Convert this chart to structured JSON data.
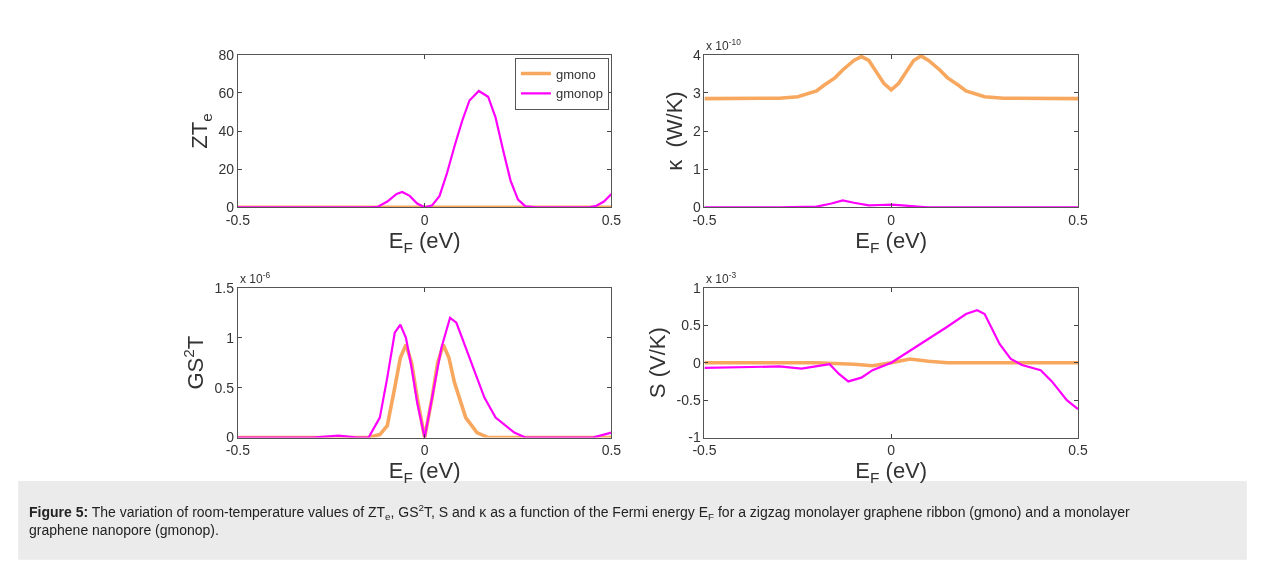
{
  "chart_data": [
    {
      "type": "line",
      "ylabel": "ZT$_{e}$",
      "xlabel": "E$_{F}$ (eV)",
      "xlim": [
        -0.5,
        0.5
      ],
      "xticks": [
        -0.5,
        0,
        0.5
      ],
      "ylim": [
        0,
        80
      ],
      "yticks": [
        0,
        20,
        40,
        60,
        80
      ],
      "legend": "top right",
      "series": [
        {
          "name": "gmono",
          "color": "#f7a85e",
          "x": [
            -0.5,
            -0.25,
            0,
            0.25,
            0.5
          ],
          "values": [
            0,
            0,
            0,
            0,
            0
          ]
        },
        {
          "name": "gmonop",
          "color": "#ff00ff",
          "x": [
            -0.5,
            -0.15,
            -0.125,
            -0.1,
            -0.075,
            -0.06,
            -0.04,
            -0.02,
            0,
            0.02,
            0.04,
            0.06,
            0.08,
            0.1,
            0.12,
            0.145,
            0.17,
            0.19,
            0.21,
            0.23,
            0.25,
            0.27,
            0.3,
            0.44,
            0.46,
            0.48,
            0.5
          ],
          "values": [
            0,
            0,
            0.3,
            3,
            7,
            8,
            6,
            2,
            0,
            1,
            6,
            18,
            32,
            45,
            56,
            61,
            58,
            47,
            30,
            14,
            4,
            0.5,
            0,
            0,
            0.8,
            3,
            7
          ]
        }
      ]
    },
    {
      "type": "line",
      "ylabel": "κ  (W/K)",
      "xlabel": "E$_{F}$ (eV)",
      "xlim": [
        -0.5,
        0.5
      ],
      "xticks": [
        -0.5,
        0,
        0.5
      ],
      "ylim": [
        0,
        4
      ],
      "yticks": [
        0,
        1,
        2,
        3,
        4
      ],
      "annotations": [
        "x 10$^{-10}$"
      ],
      "series": [
        {
          "color": "#f7a85e",
          "x": [
            -0.5,
            -0.3,
            -0.25,
            -0.2,
            -0.18,
            -0.15,
            -0.13,
            -0.1,
            -0.08,
            -0.06,
            -0.04,
            -0.02,
            0,
            0.02,
            0.04,
            0.06,
            0.08,
            0.1,
            0.13,
            0.15,
            0.18,
            0.2,
            0.25,
            0.3,
            0.5
          ],
          "values": [
            2.85,
            2.86,
            2.9,
            3.05,
            3.2,
            3.4,
            3.6,
            3.85,
            3.95,
            3.85,
            3.55,
            3.25,
            3.08,
            3.25,
            3.55,
            3.85,
            3.97,
            3.85,
            3.6,
            3.4,
            3.2,
            3.05,
            2.9,
            2.86,
            2.85
          ]
        },
        {
          "color": "#ff00ff",
          "x": [
            -0.5,
            -0.3,
            -0.2,
            -0.16,
            -0.13,
            -0.1,
            -0.06,
            -0.03,
            0,
            0.03,
            0.07,
            0.1,
            0.5
          ],
          "values": [
            0,
            0,
            0.02,
            0.1,
            0.18,
            0.12,
            0.05,
            0.06,
            0.07,
            0.05,
            0.02,
            0,
            0
          ]
        }
      ]
    },
    {
      "type": "line",
      "ylabel": "GS$^{2}$T",
      "xlabel": "E$_{F}$ (eV)",
      "xlim": [
        -0.5,
        0.5
      ],
      "xticks": [
        -0.5,
        0,
        0.5
      ],
      "ylim": [
        0,
        1.5
      ],
      "yticks": [
        0,
        0.5,
        1,
        1.5
      ],
      "annotations": [
        "x 10$^{-6}$"
      ],
      "series": [
        {
          "color": "#f7a85e",
          "x": [
            -0.5,
            -0.15,
            -0.12,
            -0.1,
            -0.08,
            -0.065,
            -0.05,
            -0.035,
            -0.02,
            0,
            0.02,
            0.035,
            0.05,
            0.065,
            0.08,
            0.11,
            0.14,
            0.17,
            0.5
          ],
          "values": [
            0,
            0,
            0.03,
            0.12,
            0.5,
            0.8,
            0.93,
            0.75,
            0.4,
            0,
            0.4,
            0.75,
            0.93,
            0.8,
            0.55,
            0.2,
            0.05,
            0,
            0
          ]
        },
        {
          "color": "#ff00ff",
          "x": [
            -0.5,
            -0.3,
            -0.23,
            -0.18,
            -0.15,
            -0.12,
            -0.1,
            -0.08,
            -0.065,
            -0.05,
            -0.035,
            -0.02,
            0,
            0.02,
            0.045,
            0.068,
            0.085,
            0.1,
            0.13,
            0.16,
            0.19,
            0.24,
            0.27,
            0.45,
            0.5
          ],
          "values": [
            0,
            0,
            0.02,
            0,
            0,
            0.2,
            0.6,
            1.05,
            1.13,
            1.0,
            0.7,
            0.35,
            0,
            0.4,
            0.9,
            1.2,
            1.15,
            1.0,
            0.7,
            0.4,
            0.2,
            0.05,
            0,
            0,
            0.05
          ]
        }
      ]
    },
    {
      "type": "line",
      "ylabel": "S (V/K)",
      "xlabel": "E$_{F}$ (eV)",
      "xlim": [
        -0.5,
        0.5
      ],
      "xticks": [
        -0.5,
        0,
        0.5
      ],
      "ylim": [
        -1,
        1
      ],
      "yticks": [
        -1,
        -0.5,
        0,
        0.5,
        1
      ],
      "annotations": [
        "x 10$^{-3}$"
      ],
      "series": [
        {
          "color": "#f7a85e",
          "x": [
            -0.5,
            -0.2,
            -0.1,
            -0.05,
            0,
            0.05,
            0.1,
            0.15,
            0.5
          ],
          "values": [
            0,
            0,
            -0.02,
            -0.04,
            0,
            0.05,
            0.02,
            0,
            0
          ]
        },
        {
          "color": "#ff00ff",
          "x": [
            -0.5,
            -0.3,
            -0.24,
            -0.19,
            -0.165,
            -0.14,
            -0.115,
            -0.08,
            -0.05,
            0,
            0.05,
            0.1,
            0.15,
            0.2,
            0.23,
            0.25,
            0.27,
            0.29,
            0.32,
            0.35,
            0.4,
            0.43,
            0.47,
            0.5
          ],
          "values": [
            -0.07,
            -0.05,
            -0.08,
            -0.04,
            -0.02,
            -0.15,
            -0.25,
            -0.2,
            -0.1,
            0,
            0.16,
            0.32,
            0.48,
            0.65,
            0.7,
            0.65,
            0.45,
            0.25,
            0.05,
            -0.03,
            -0.1,
            -0.25,
            -0.5,
            -0.62
          ]
        }
      ]
    },
    {
      "type": "other",
      "annotations": [
        "Figure 5: The variation of room-temperature values of ZT$_{e}$, GS$^{2}$T, S and κ as a function of the Fermi energy E$_{F}$ for a zigzag monolayer graphene ribbon (gmono) and a monolayer graphene nanopore (gmonop)."
      ]
    }
  ]
}
